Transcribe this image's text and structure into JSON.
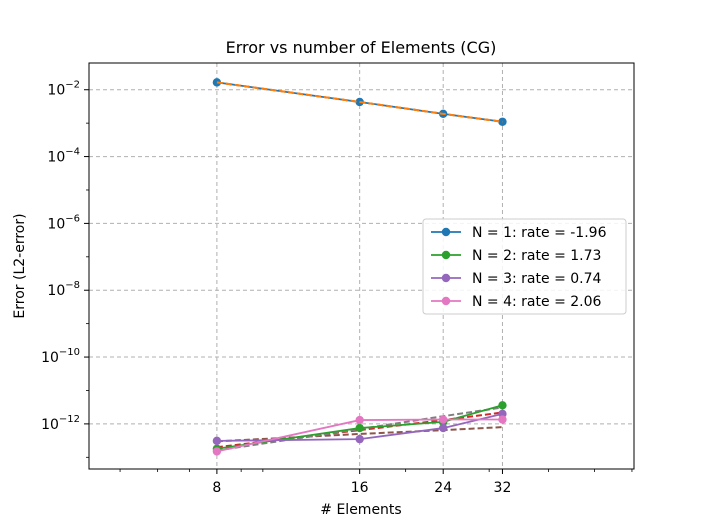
{
  "chart_data": {
    "type": "line",
    "title": "Error vs number of Elements (CG)",
    "xlabel": "# Elements",
    "ylabel": "Error (L2-error)",
    "xscale": "log",
    "yscale": "log",
    "x_ticks": [
      8,
      16,
      24,
      32
    ],
    "y_ticks": [
      {
        "exp": -12,
        "label_base": "10",
        "label_exp": "−12"
      },
      {
        "exp": -10,
        "label_base": "10",
        "label_exp": "−10"
      },
      {
        "exp": -8,
        "label_base": "10",
        "label_exp": "−8"
      },
      {
        "exp": -6,
        "label_base": "10",
        "label_exp": "−6"
      },
      {
        "exp": -4,
        "label_base": "10",
        "label_exp": "−4"
      },
      {
        "exp": -2,
        "label_base": "10",
        "label_exp": "−2"
      }
    ],
    "xlim": [
      4.3,
      60.6
    ],
    "ylim_exp": [
      -13.35,
      -1.2
    ],
    "grid": true,
    "legend_position": "center-right",
    "x": [
      8,
      16,
      24,
      32
    ],
    "series": [
      {
        "name": "N = 1: rate = -1.96",
        "color": "#1f77b4",
        "values": [
          0.0166,
          0.0043,
          0.0019,
          0.0011
        ]
      },
      {
        "name": "N = 2: rate = 1.73",
        "color": "#2ca02c",
        "values": [
          1.8e-13,
          7.5e-13,
          1.15e-12,
          3.6e-12
        ]
      },
      {
        "name": "N = 3: rate = 0.74",
        "color": "#9467bd",
        "values": [
          3.1e-13,
          3.5e-13,
          7.5e-13,
          2e-12
        ]
      },
      {
        "name": "N = 4: rate = 2.06",
        "color": "#e377c2",
        "values": [
          1.5e-13,
          1.3e-12,
          1.35e-12,
          1.35e-12
        ]
      }
    ],
    "fits": [
      {
        "color": "#ff7f0e",
        "values": [
          0.0166,
          0.0043,
          0.0019,
          0.0011
        ]
      },
      {
        "color": "#d62728",
        "values": [
          2e-13,
          6.5e-13,
          1.3e-12,
          2.2e-12
        ]
      },
      {
        "color": "#8c564b",
        "values": [
          3e-13,
          5e-13,
          6.5e-13,
          8e-13
        ]
      },
      {
        "color": "#7f7f7f",
        "values": [
          1.6e-13,
          7e-13,
          1.7e-12,
          3.1e-12
        ]
      }
    ]
  }
}
